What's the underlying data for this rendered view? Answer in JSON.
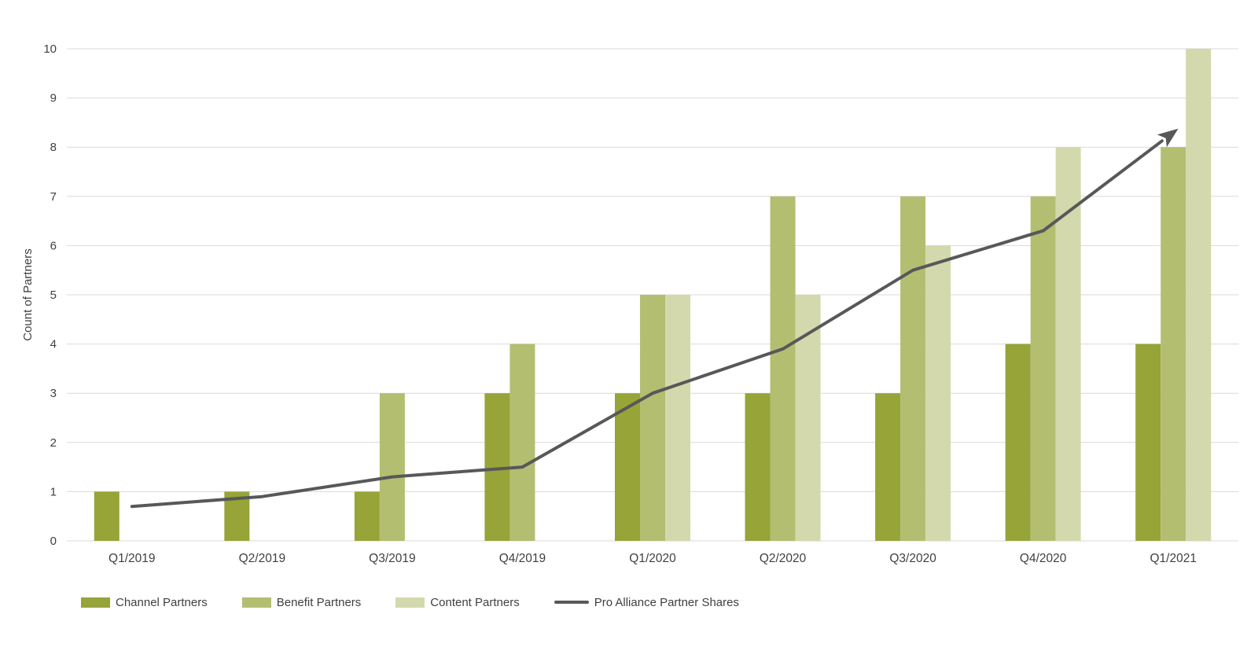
{
  "chart_data": {
    "type": "bar+line",
    "ylabel": "Count of Partners",
    "categories": [
      "Q1/2019",
      "Q2/2019",
      "Q3/2019",
      "Q4/2019",
      "Q1/2020",
      "Q2/2020",
      "Q3/2020",
      "Q4/2020",
      "Q1/2021"
    ],
    "series": [
      {
        "name": "Channel Partners",
        "type": "bar",
        "color": "#97A437",
        "values": [
          1,
          1,
          1,
          3,
          3,
          3,
          3,
          4,
          4
        ]
      },
      {
        "name": "Benefit Partners",
        "type": "bar",
        "color": "#B3BE71",
        "values": [
          0,
          0,
          3,
          4,
          5,
          7,
          7,
          7,
          8
        ]
      },
      {
        "name": "Content Partners",
        "type": "bar",
        "color": "#D3D9AC",
        "values": [
          0,
          0,
          0,
          0,
          5,
          5,
          6,
          8,
          10
        ]
      },
      {
        "name": "Pro Alliance Partner Shares",
        "type": "line",
        "color": "#57585A",
        "arrow_end": true,
        "values": [
          0.7,
          0.9,
          1.3,
          1.5,
          3.0,
          3.9,
          5.5,
          6.3,
          8.3
        ]
      }
    ],
    "ylim": [
      0,
      10
    ],
    "yticks": [
      0,
      1,
      2,
      3,
      4,
      5,
      6,
      7,
      8,
      9,
      10
    ],
    "grid": true,
    "gridline_color": "#D9D9D9",
    "axis_text_color": "#404040",
    "legend_position": "bottom-left",
    "background": "#FFFFFF"
  }
}
